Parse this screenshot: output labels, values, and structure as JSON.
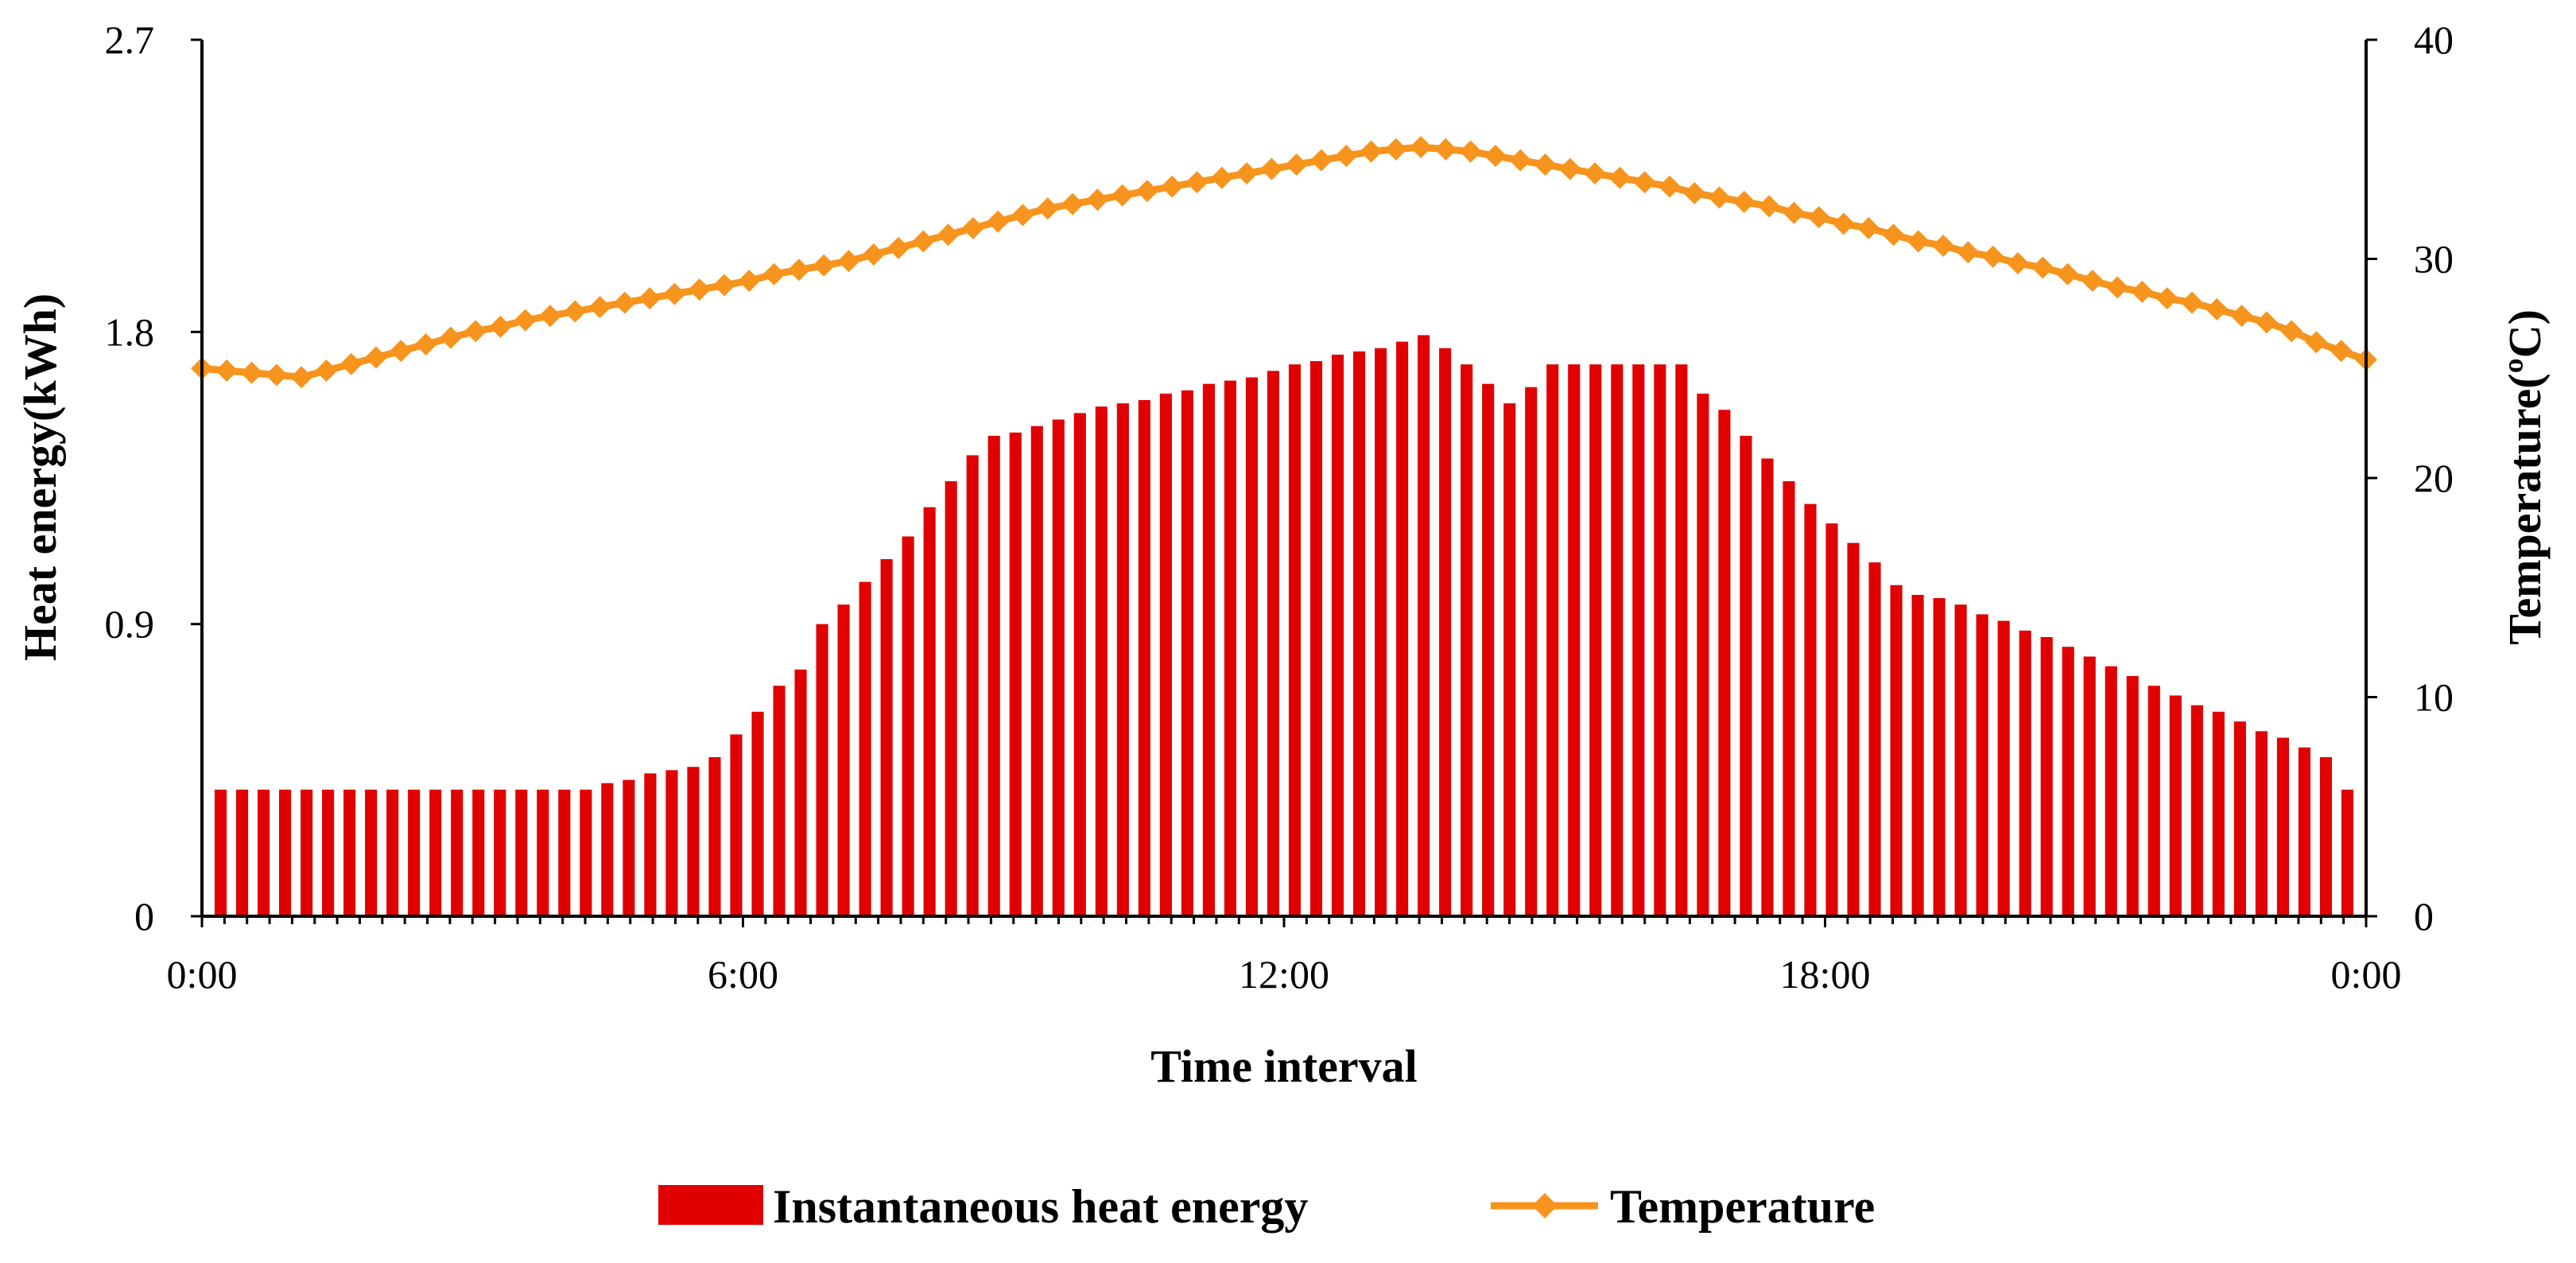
{
  "chart_data": {
    "type": "bar+line",
    "title": "",
    "xlabel": "Time  interval",
    "ylabel_left": "Heat  energy(kWh)",
    "ylabel_right": "Temperature(ºC)",
    "x_tick_labels": [
      "0:00",
      "6:00",
      "12:00",
      "18:00",
      "0:00"
    ],
    "y_left_ticks": [
      "0",
      "0.9",
      "1.8",
      "2.7"
    ],
    "y_left_lim": [
      0,
      2.7
    ],
    "y_right_ticks": [
      "0",
      "10",
      "20",
      "30",
      "40"
    ],
    "y_right_lim": [
      0,
      40
    ],
    "x_range_hours": [
      0,
      24
    ],
    "bar_color": "#e00000",
    "line_color": "#f7941d",
    "series": [
      {
        "name": "Instantaneous heat energy",
        "axis": "left",
        "kind": "bar",
        "values": [
          0.39,
          0.39,
          0.39,
          0.39,
          0.39,
          0.39,
          0.39,
          0.39,
          0.39,
          0.39,
          0.39,
          0.39,
          0.39,
          0.39,
          0.39,
          0.39,
          0.39,
          0.39,
          0.41,
          0.42,
          0.44,
          0.45,
          0.46,
          0.49,
          0.56,
          0.63,
          0.71,
          0.76,
          0.9,
          0.96,
          1.03,
          1.1,
          1.17,
          1.26,
          1.34,
          1.42,
          1.48,
          1.49,
          1.51,
          1.53,
          1.55,
          1.57,
          1.58,
          1.59,
          1.61,
          1.62,
          1.64,
          1.65,
          1.66,
          1.68,
          1.7,
          1.71,
          1.73,
          1.74,
          1.75,
          1.77,
          1.79,
          1.75,
          1.7,
          1.64,
          1.58,
          1.63,
          1.7,
          1.7,
          1.7,
          1.7,
          1.7,
          1.7,
          1.7,
          1.61,
          1.56,
          1.48,
          1.41,
          1.34,
          1.27,
          1.21,
          1.15,
          1.09,
          1.02,
          0.99,
          0.98,
          0.96,
          0.93,
          0.91,
          0.88,
          0.86,
          0.83,
          0.8,
          0.77,
          0.74,
          0.71,
          0.68,
          0.65,
          0.63,
          0.6,
          0.57,
          0.55,
          0.52,
          0.49,
          0.39
        ]
      },
      {
        "name": "Temperature",
        "axis": "right",
        "kind": "line",
        "values": [
          25.0,
          24.9,
          24.8,
          24.7,
          24.6,
          24.9,
          25.2,
          25.5,
          25.8,
          26.1,
          26.4,
          26.7,
          26.9,
          27.2,
          27.4,
          27.6,
          27.8,
          28.0,
          28.2,
          28.4,
          28.6,
          28.8,
          29.0,
          29.3,
          29.5,
          29.7,
          29.9,
          30.2,
          30.5,
          30.8,
          31.1,
          31.4,
          31.7,
          32.0,
          32.3,
          32.5,
          32.7,
          32.9,
          33.1,
          33.3,
          33.5,
          33.7,
          33.9,
          34.1,
          34.3,
          34.5,
          34.7,
          34.9,
          35.0,
          35.1,
          35.0,
          34.9,
          34.7,
          34.5,
          34.3,
          34.1,
          33.9,
          33.7,
          33.5,
          33.3,
          33.0,
          32.8,
          32.6,
          32.4,
          32.1,
          31.9,
          31.6,
          31.4,
          31.1,
          30.8,
          30.6,
          30.3,
          30.1,
          29.8,
          29.6,
          29.3,
          29.0,
          28.7,
          28.5,
          28.2,
          28.0,
          27.7,
          27.4,
          27.1,
          26.7,
          26.2,
          25.8,
          25.4
        ]
      }
    ],
    "legend": [
      "Instantaneous heat energy",
      "Temperature"
    ],
    "legend_position": "bottom-center",
    "grid": false
  }
}
